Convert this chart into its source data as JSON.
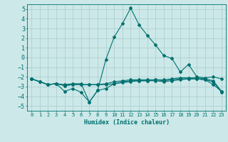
{
  "xlabel": "Humidex (Indice chaleur)",
  "ylabel": "",
  "xlim": [
    -0.5,
    23.5
  ],
  "ylim": [
    -5.5,
    5.5
  ],
  "yticks": [
    -5,
    -4,
    -3,
    -2,
    -1,
    0,
    1,
    2,
    3,
    4,
    5
  ],
  "xticks": [
    0,
    1,
    2,
    3,
    4,
    5,
    6,
    7,
    8,
    9,
    10,
    11,
    12,
    13,
    14,
    15,
    16,
    17,
    18,
    19,
    20,
    21,
    22,
    23
  ],
  "bg_color": "#cce8e8",
  "grid_color": "#aacccc",
  "line_color": "#007070",
  "lines": [
    {
      "x": [
        0,
        1,
        2,
        3,
        4,
        5,
        6,
        7,
        8,
        9,
        10,
        11,
        12,
        13,
        14,
        15,
        16,
        17,
        18,
        19,
        20,
        21,
        22,
        23
      ],
      "y": [
        -2.2,
        -2.5,
        -2.8,
        -2.7,
        -3.5,
        -3.2,
        -3.6,
        -4.6,
        -3.4,
        -3.2,
        -2.7,
        -2.5,
        -2.4,
        -2.4,
        -2.4,
        -2.4,
        -2.5,
        -2.4,
        -2.3,
        -2.2,
        -2.2,
        -2.3,
        -2.8,
        -3.5
      ]
    },
    {
      "x": [
        0,
        1,
        2,
        3,
        4,
        5,
        6,
        7,
        8,
        9,
        10,
        11,
        12,
        13,
        14,
        15,
        16,
        17,
        18,
        19,
        20,
        21,
        22,
        23
      ],
      "y": [
        -2.2,
        -2.5,
        -2.8,
        -2.7,
        -2.9,
        -2.8,
        -2.8,
        -2.8,
        -2.8,
        -2.8,
        -2.7,
        -2.6,
        -2.5,
        -2.4,
        -2.4,
        -2.3,
        -2.4,
        -2.3,
        -2.2,
        -2.2,
        -2.2,
        -2.3,
        -2.5,
        -3.6
      ]
    },
    {
      "x": [
        0,
        1,
        2,
        3,
        4,
        5,
        6,
        7,
        8,
        9,
        10,
        11,
        12,
        13,
        14,
        15,
        16,
        17,
        18,
        19,
        20,
        21,
        22,
        23
      ],
      "y": [
        -2.2,
        -2.5,
        -2.8,
        -2.7,
        -2.9,
        -2.8,
        -2.8,
        -2.8,
        -2.8,
        -2.7,
        -2.5,
        -2.4,
        -2.3,
        -2.3,
        -2.3,
        -2.3,
        -2.3,
        -2.2,
        -2.1,
        -2.1,
        -2.1,
        -2.2,
        -2.4,
        -3.5
      ]
    },
    {
      "x": [
        0,
        1,
        2,
        3,
        4,
        5,
        6,
        7,
        8,
        9,
        10,
        11,
        12,
        13,
        14,
        15,
        16,
        17,
        18,
        19,
        20,
        21,
        22,
        23
      ],
      "y": [
        -2.2,
        -2.5,
        -2.8,
        -2.7,
        -2.8,
        -2.7,
        -2.7,
        -4.6,
        -3.4,
        -0.2,
        2.1,
        3.5,
        5.1,
        3.4,
        2.3,
        1.3,
        0.2,
        -0.1,
        -1.5,
        -0.7,
        -2.0,
        -2.1,
        -2.0,
        -2.2
      ]
    }
  ]
}
